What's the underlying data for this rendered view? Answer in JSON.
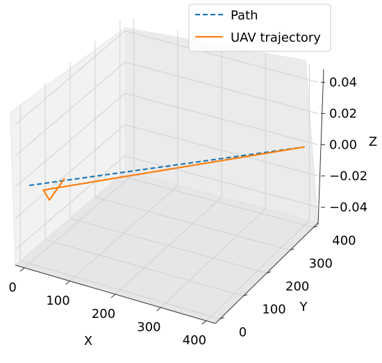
{
  "chart_data": {
    "type": "line",
    "projection": "3d",
    "xlabel": "X",
    "ylabel": "Y",
    "zlabel": "Z",
    "xlim": [
      -20,
      420
    ],
    "ylim": [
      -20,
      420
    ],
    "zlim": [
      -0.05,
      0.05
    ],
    "x_ticks": [
      "0",
      "100",
      "200",
      "300",
      "400"
    ],
    "y_ticks": [
      "0",
      "100",
      "200",
      "300",
      "400"
    ],
    "z_ticks": [
      "0.04",
      "0.02",
      "0.00",
      "−0.02",
      "−0.04"
    ],
    "grid": true,
    "legend_position": "top-right",
    "series": [
      {
        "name": "Path",
        "style": "dashed",
        "color": "#1f77b4",
        "x": [
          0,
          400
        ],
        "y": [
          0,
          400
        ],
        "z": [
          0,
          0
        ]
      },
      {
        "name": "UAV trajectory",
        "style": "solid",
        "color": "#ff7f0e",
        "x": [
          45,
          25,
          20,
          400
        ],
        "y": [
          60,
          35,
          20,
          400
        ],
        "z": [
          0,
          -0.012,
          -0.004,
          0
        ]
      }
    ]
  }
}
